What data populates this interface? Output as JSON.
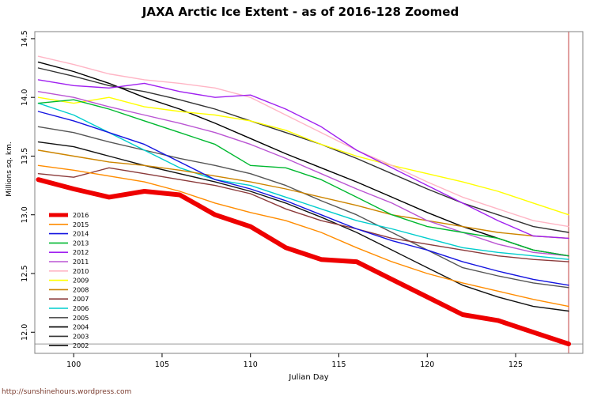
{
  "title": "JAXA Arctic Ice Extent - as of 2016-128 Zoomed",
  "footer": "http://sunshinehours.wordpress.com",
  "chart_data": {
    "type": "line",
    "title": "JAXA Arctic Ice Extent - as of 2016-128 Zoomed",
    "xlabel": "Julian Day",
    "ylabel": "Millions sq. km.",
    "xlim": [
      97.8,
      128.8
    ],
    "ylim": [
      11.82,
      14.56
    ],
    "xticks": [
      100,
      105,
      110,
      115,
      120,
      125
    ],
    "yticks": [
      12.0,
      12.5,
      13.0,
      13.5,
      14.0,
      14.5
    ],
    "ytick_labels": [
      "12.0",
      "12.5",
      "13.0",
      "13.5",
      "14.0",
      "14.5"
    ],
    "grid": false,
    "legend_position": "inside-bottom-left",
    "reference_lines": {
      "h": 11.9,
      "h_color": "#999999",
      "v": 128,
      "v_color": "#cd5c5c"
    },
    "x": [
      98,
      100,
      102,
      104,
      106,
      108,
      110,
      112,
      114,
      116,
      118,
      120,
      122,
      124,
      126,
      128
    ],
    "series": [
      {
        "name": "2016",
        "color": "#ee0000",
        "width": 6,
        "values": [
          13.3,
          13.22,
          13.15,
          13.2,
          13.17,
          13.0,
          12.9,
          12.72,
          12.62,
          12.6,
          12.45,
          12.3,
          12.15,
          12.1,
          12.0,
          11.9
        ]
      },
      {
        "name": "2015",
        "color": "#ff8c00",
        "width": 1.4,
        "values": [
          13.42,
          13.38,
          13.33,
          13.28,
          13.2,
          13.1,
          13.02,
          12.95,
          12.85,
          12.72,
          12.6,
          12.5,
          12.42,
          12.35,
          12.28,
          12.22
        ]
      },
      {
        "name": "2014",
        "color": "#1414e0",
        "width": 1.4,
        "values": [
          13.88,
          13.8,
          13.7,
          13.6,
          13.45,
          13.3,
          13.22,
          13.12,
          13.0,
          12.88,
          12.78,
          12.7,
          12.6,
          12.52,
          12.45,
          12.4
        ]
      },
      {
        "name": "2013",
        "color": "#00b830",
        "width": 1.4,
        "values": [
          13.95,
          13.98,
          13.9,
          13.8,
          13.7,
          13.6,
          13.42,
          13.4,
          13.3,
          13.15,
          13.0,
          12.9,
          12.85,
          12.8,
          12.7,
          12.65
        ]
      },
      {
        "name": "2012",
        "color": "#a020f0",
        "width": 1.4,
        "values": [
          14.15,
          14.1,
          14.08,
          14.12,
          14.05,
          14.0,
          14.02,
          13.9,
          13.75,
          13.55,
          13.4,
          13.25,
          13.1,
          12.95,
          12.82,
          12.8
        ]
      },
      {
        "name": "2011",
        "color": "#ba55d3",
        "width": 1.4,
        "values": [
          14.05,
          14.0,
          13.92,
          13.85,
          13.78,
          13.7,
          13.6,
          13.48,
          13.35,
          13.22,
          13.1,
          12.95,
          12.85,
          12.75,
          12.68,
          12.65
        ]
      },
      {
        "name": "2010",
        "color": "#ffb5c5",
        "width": 1.4,
        "values": [
          14.35,
          14.28,
          14.2,
          14.15,
          14.12,
          14.08,
          14.0,
          13.85,
          13.7,
          13.55,
          13.42,
          13.28,
          13.15,
          13.05,
          12.95,
          12.9
        ]
      },
      {
        "name": "2009",
        "color": "#ffff00",
        "width": 1.4,
        "values": [
          14.0,
          13.95,
          14.0,
          13.92,
          13.88,
          13.85,
          13.8,
          13.72,
          13.6,
          13.5,
          13.42,
          13.35,
          13.28,
          13.2,
          13.1,
          13.0
        ]
      },
      {
        "name": "2008",
        "color": "#cd8500",
        "width": 1.4,
        "values": [
          13.55,
          13.5,
          13.45,
          13.42,
          13.38,
          13.33,
          13.28,
          13.22,
          13.15,
          13.08,
          13.0,
          12.95,
          12.9,
          12.85,
          12.82,
          12.8
        ]
      },
      {
        "name": "2007",
        "color": "#8b3a3a",
        "width": 1.4,
        "values": [
          13.35,
          13.32,
          13.4,
          13.35,
          13.3,
          13.25,
          13.18,
          13.05,
          12.95,
          12.88,
          12.8,
          12.75,
          12.7,
          12.65,
          12.62,
          12.6
        ]
      },
      {
        "name": "2006",
        "color": "#00cdcd",
        "width": 1.4,
        "values": [
          13.95,
          13.85,
          13.7,
          13.55,
          13.4,
          13.3,
          13.25,
          13.15,
          13.05,
          12.95,
          12.88,
          12.8,
          12.72,
          12.68,
          12.65,
          12.62
        ]
      },
      {
        "name": "2005",
        "color": "#555555",
        "width": 1.4,
        "values": [
          13.75,
          13.7,
          13.62,
          13.55,
          13.48,
          13.42,
          13.35,
          13.25,
          13.12,
          13.0,
          12.85,
          12.7,
          12.55,
          12.48,
          12.42,
          12.38
        ]
      },
      {
        "name": "2004",
        "color": "#000000",
        "width": 1.4,
        "values": [
          14.3,
          14.22,
          14.12,
          14.0,
          13.9,
          13.78,
          13.65,
          13.52,
          13.4,
          13.28,
          13.15,
          13.02,
          12.9,
          12.8,
          12.7,
          12.65
        ]
      },
      {
        "name": "2003",
        "color": "#333333",
        "width": 1.4,
        "values": [
          14.25,
          14.18,
          14.1,
          14.05,
          13.98,
          13.9,
          13.8,
          13.7,
          13.6,
          13.48,
          13.35,
          13.22,
          13.1,
          13.0,
          12.9,
          12.85
        ]
      },
      {
        "name": "2002",
        "color": "#111111",
        "width": 1.4,
        "values": [
          13.62,
          13.58,
          13.5,
          13.42,
          13.35,
          13.28,
          13.2,
          13.1,
          12.98,
          12.85,
          12.7,
          12.55,
          12.4,
          12.3,
          12.22,
          12.18
        ]
      }
    ]
  }
}
